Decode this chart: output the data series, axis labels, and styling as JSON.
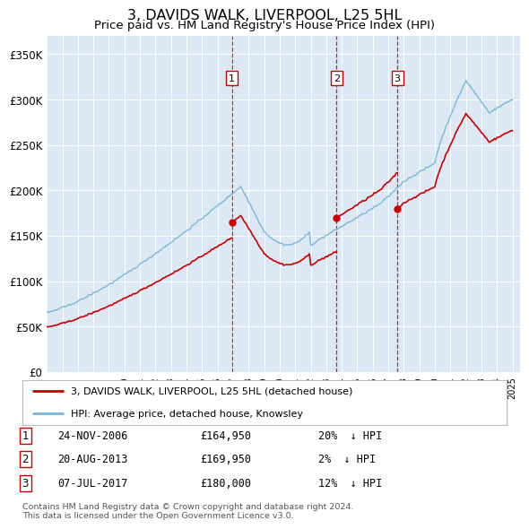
{
  "title": "3, DAVIDS WALK, LIVERPOOL, L25 5HL",
  "subtitle": "Price paid vs. HM Land Registry's House Price Index (HPI)",
  "ylim": [
    0,
    370000
  ],
  "yticks": [
    0,
    50000,
    100000,
    150000,
    200000,
    250000,
    300000,
    350000
  ],
  "ytick_labels": [
    "£0",
    "£50K",
    "£100K",
    "£150K",
    "£200K",
    "£250K",
    "£300K",
    "£350K"
  ],
  "background_color": "#dce9f5",
  "plot_bg_color": "#dce9f5",
  "hpi_color": "#7ab8d9",
  "price_color": "#cc0000",
  "sale_marker_color": "#cc0000",
  "vline_color": "#cc0000",
  "sale_dates": [
    "2006-11-24",
    "2013-08-20",
    "2017-07-07"
  ],
  "sale_prices": [
    164950,
    169950,
    180000
  ],
  "sale_labels": [
    "1",
    "2",
    "3"
  ],
  "sale_info": [
    {
      "label": "1",
      "date": "24-NOV-2006",
      "price": "£164,950",
      "pct": "20%  ↓ HPI"
    },
    {
      "label": "2",
      "date": "20-AUG-2013",
      "price": "£169,950",
      "pct": "2%  ↓ HPI"
    },
    {
      "label": "3",
      "date": "07-JUL-2017",
      "price": "£180,000",
      "pct": "12%  ↓ HPI"
    }
  ],
  "legend_line1": "3, DAVIDS WALK, LIVERPOOL, L25 5HL (detached house)",
  "legend_line2": "HPI: Average price, detached house, Knowsley",
  "footnote": "Contains HM Land Registry data © Crown copyright and database right 2024.\nThis data is licensed under the Open Government Licence v3.0.",
  "x_start_year": 1995,
  "x_end_year": 2025
}
